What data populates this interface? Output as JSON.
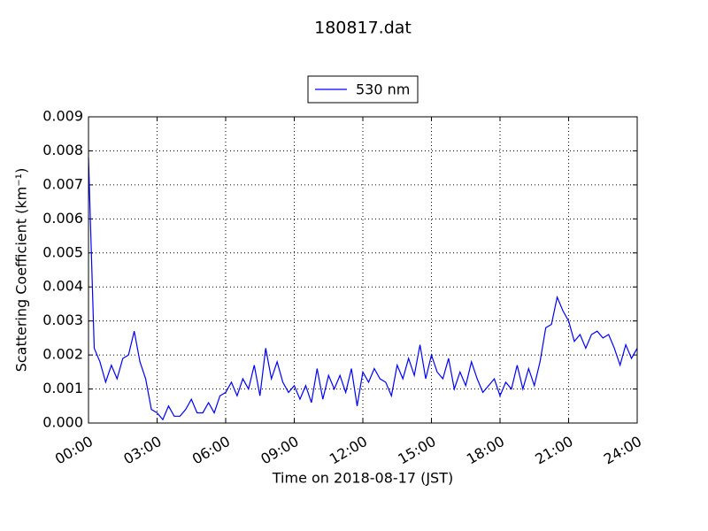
{
  "chart_data": {
    "type": "line",
    "title": "180817.dat",
    "xlabel": "Time on 2018-08-17 (JST)",
    "ylabel": "Scattering Coefficient (km⁻¹)",
    "x": [
      0,
      0.25,
      0.5,
      0.75,
      1,
      1.25,
      1.5,
      1.75,
      2,
      2.25,
      2.5,
      2.75,
      3,
      3.25,
      3.5,
      3.75,
      4,
      4.25,
      4.5,
      4.75,
      5,
      5.25,
      5.5,
      5.75,
      6,
      6.25,
      6.5,
      6.75,
      7,
      7.25,
      7.5,
      7.75,
      8,
      8.25,
      8.5,
      8.75,
      9,
      9.25,
      9.5,
      9.75,
      10,
      10.25,
      10.5,
      10.75,
      11,
      11.25,
      11.5,
      11.75,
      12,
      12.25,
      12.5,
      12.75,
      13,
      13.25,
      13.5,
      13.75,
      14,
      14.25,
      14.5,
      14.75,
      15,
      15.25,
      15.5,
      15.75,
      16,
      16.25,
      16.5,
      16.75,
      17,
      17.25,
      17.5,
      17.75,
      18,
      18.25,
      18.5,
      18.75,
      19,
      19.25,
      19.5,
      19.75,
      20,
      20.25,
      20.5,
      20.75,
      21,
      21.25,
      21.5,
      21.75,
      22,
      22.25,
      22.5,
      22.75,
      23,
      23.25,
      23.5,
      23.75,
      24
    ],
    "series": [
      {
        "name": "530 nm",
        "color": "#0000ff",
        "values": [
          0.0078,
          0.0022,
          0.0018,
          0.0012,
          0.0017,
          0.0013,
          0.0019,
          0.002,
          0.0027,
          0.0018,
          0.0013,
          0.0004,
          0.0003,
          0.0001,
          0.0005,
          0.0002,
          0.0002,
          0.0004,
          0.0007,
          0.0003,
          0.0003,
          0.0006,
          0.0003,
          0.0008,
          0.0009,
          0.0012,
          0.0008,
          0.0013,
          0.001,
          0.0017,
          0.0008,
          0.0022,
          0.0013,
          0.0018,
          0.0012,
          0.0009,
          0.0011,
          0.0007,
          0.0011,
          0.0006,
          0.0016,
          0.0007,
          0.0014,
          0.001,
          0.0014,
          0.0009,
          0.0016,
          0.0005,
          0.0015,
          0.0012,
          0.0016,
          0.0013,
          0.0012,
          0.0008,
          0.0017,
          0.0013,
          0.0019,
          0.0014,
          0.0023,
          0.0013,
          0.002,
          0.0015,
          0.0013,
          0.0019,
          0.001,
          0.0015,
          0.0011,
          0.0018,
          0.0013,
          0.0009,
          0.0011,
          0.0013,
          0.0008,
          0.0012,
          0.001,
          0.0017,
          0.001,
          0.0016,
          0.0011,
          0.0018,
          0.0028,
          0.0029,
          0.0037,
          0.0033,
          0.003,
          0.0024,
          0.0026,
          0.0022,
          0.0026,
          0.0027,
          0.0025,
          0.0026,
          0.0022,
          0.0017,
          0.0023,
          0.0019,
          0.0022
        ]
      }
    ],
    "xlim": [
      0,
      24
    ],
    "xticks": [
      {
        "value": 0,
        "label": "00:00"
      },
      {
        "value": 3,
        "label": "03:00"
      },
      {
        "value": 6,
        "label": "06:00"
      },
      {
        "value": 9,
        "label": "09:00"
      },
      {
        "value": 12,
        "label": "12:00"
      },
      {
        "value": 15,
        "label": "15:00"
      },
      {
        "value": 18,
        "label": "18:00"
      },
      {
        "value": 21,
        "label": "21:00"
      },
      {
        "value": 24,
        "label": "24:00"
      }
    ],
    "ylim": [
      0,
      0.009
    ],
    "yticks": [
      {
        "value": 0,
        "label": "0.000"
      },
      0.001,
      0.002,
      0.003,
      0.004,
      0.005,
      0.006,
      0.007,
      0.008,
      0.009
    ],
    "grid": true,
    "legend": "upper center"
  }
}
